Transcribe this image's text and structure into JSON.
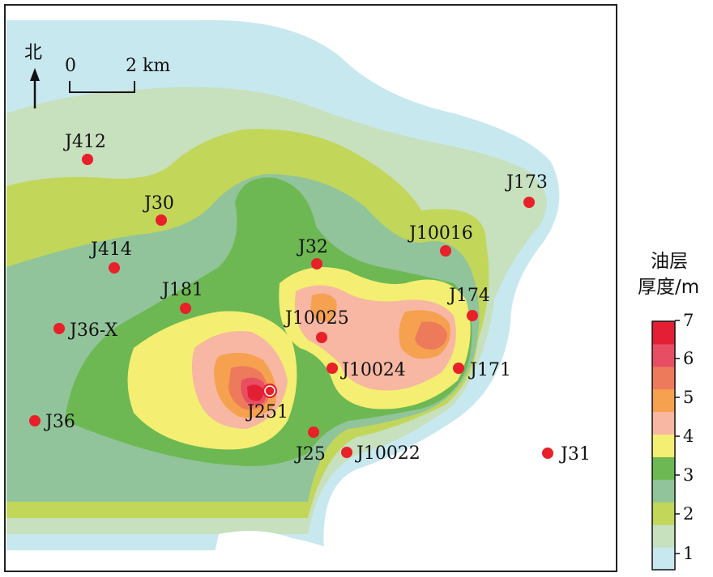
{
  "map": {
    "north_label": "北",
    "scale": {
      "start": "0",
      "end": "2 km"
    },
    "legend": {
      "title_line1": "油层",
      "title_line2": "厚度/m",
      "ticks": [
        "1",
        "2",
        "3",
        "4",
        "5",
        "6",
        "7"
      ],
      "colors": [
        "#c8e8ef",
        "#c7e0bd",
        "#c2d65a",
        "#91c49a",
        "#6db853",
        "#f4ee72",
        "#f7b7a2",
        "#f5a14f",
        "#ee7a5c",
        "#e84e63",
        "#e41f34"
      ]
    },
    "wells": [
      {
        "name": "J412"
      },
      {
        "name": "J30"
      },
      {
        "name": "J414"
      },
      {
        "name": "J181"
      },
      {
        "name": "J36-X"
      },
      {
        "name": "J36"
      },
      {
        "name": "J32"
      },
      {
        "name": "J10016"
      },
      {
        "name": "J173"
      },
      {
        "name": "J174"
      },
      {
        "name": "J10025"
      },
      {
        "name": "J10024"
      },
      {
        "name": "J171"
      },
      {
        "name": "J251"
      },
      {
        "name": "J25"
      },
      {
        "name": "J10022"
      },
      {
        "name": "J31"
      }
    ],
    "well_color": "#e8202a"
  }
}
